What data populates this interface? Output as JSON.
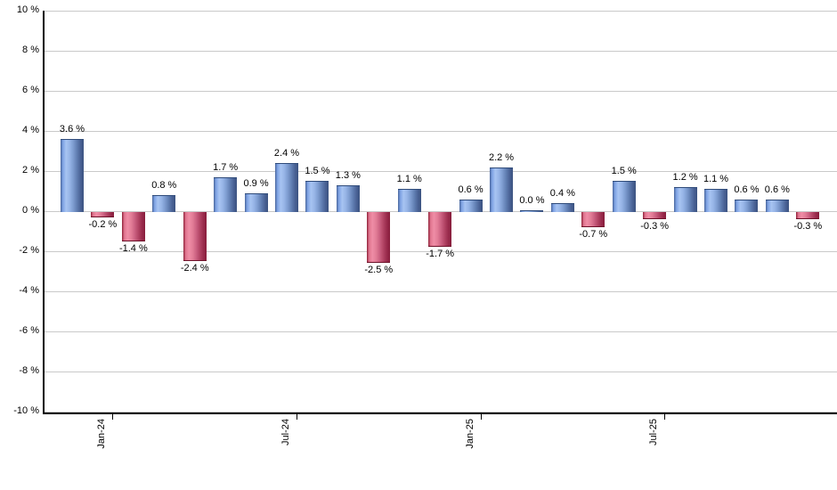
{
  "chart_data": {
    "type": "bar",
    "title": "",
    "unit": "%",
    "values": [
      3.6,
      -0.2,
      -1.4,
      0.8,
      -2.4,
      1.7,
      0.9,
      2.4,
      1.5,
      1.3,
      -2.5,
      1.1,
      -1.7,
      0.6,
      2.2,
      0.0,
      0.4,
      -0.7,
      1.5,
      -0.3,
      1.2,
      1.1,
      0.6,
      0.6,
      -0.3
    ],
    "bar_labels": [
      "3.6 %",
      "-0.2 %",
      "-1.4 %",
      "0.8 %",
      "-2.4 %",
      "1.7 %",
      "0.9 %",
      "2.4 %",
      "1.5 %",
      "1.3 %",
      "-2.5 %",
      "1.1 %",
      "-1.7 %",
      "0.6 %",
      "2.2 %",
      "0.0 %",
      "0.4 %",
      "-0.7 %",
      "1.5 %",
      "-0.3 %",
      "1.2 %",
      "1.1 %",
      "0.6 %",
      "0.6 %",
      "-0.3 %"
    ],
    "x_ticks": [
      {
        "bar_index": 1,
        "label": "Jan-24"
      },
      {
        "bar_index": 7,
        "label": "Jul-24"
      },
      {
        "bar_index": 13,
        "label": "Jan-25"
      },
      {
        "bar_index": 19,
        "label": "Jul-25"
      }
    ],
    "y_ticks": [
      {
        "value": 10,
        "label": "10 %"
      },
      {
        "value": 8,
        "label": "8 %"
      },
      {
        "value": 6,
        "label": "6 %"
      },
      {
        "value": 4,
        "label": "4 %"
      },
      {
        "value": 2,
        "label": "2 %"
      },
      {
        "value": 0,
        "label": "0 %"
      },
      {
        "value": -2,
        "label": "-2 %"
      },
      {
        "value": -4,
        "label": "-4 %"
      },
      {
        "value": -6,
        "label": "-6 %"
      },
      {
        "value": -8,
        "label": "-8 %"
      },
      {
        "value": -10,
        "label": "-10 %"
      }
    ],
    "ylim": [
      -10,
      10
    ],
    "grid": true,
    "legend": false,
    "colors": {
      "positive_light": "#a7c4f2",
      "positive_dark": "#3c5380",
      "negative_light": "#ef8da6",
      "negative_dark": "#871d3c",
      "gridline": "#c9c9c9",
      "axis": "#000000",
      "label_text": "#000000",
      "background": "#ffffff"
    }
  }
}
